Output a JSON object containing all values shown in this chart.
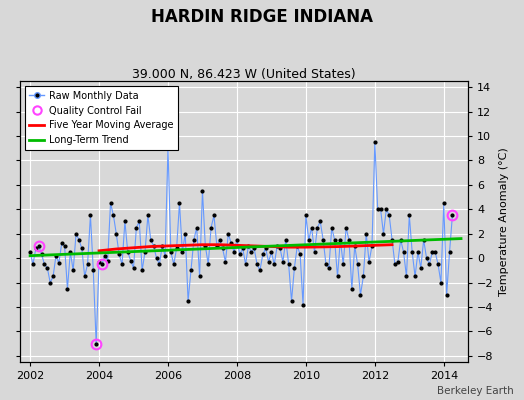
{
  "title": "HARDIN RIDGE INDIANA",
  "subtitle": "39.000 N, 86.423 W (United States)",
  "ylabel": "Temperature Anomaly (°C)",
  "watermark": "Berkeley Earth",
  "xlim": [
    2001.7,
    2014.7
  ],
  "ylim": [
    -8.5,
    14.5
  ],
  "yticks": [
    -8,
    -6,
    -4,
    -2,
    0,
    2,
    4,
    6,
    8,
    10,
    12,
    14
  ],
  "xticks": [
    2002,
    2004,
    2006,
    2008,
    2010,
    2012,
    2014
  ],
  "bg_color": "#d8d8d8",
  "plot_bg_color": "#d8d8d8",
  "grid_color": "#ffffff",
  "raw_line_color": "#6699ff",
  "raw_marker_color": "#000000",
  "qc_fail_color": "#ff44ff",
  "moving_avg_color": "#ff0000",
  "trend_color": "#00bb00",
  "title_fontsize": 12,
  "subtitle_fontsize": 9,
  "monthly_data": {
    "times": [
      2002.0,
      2002.083,
      2002.167,
      2002.25,
      2002.333,
      2002.417,
      2002.5,
      2002.583,
      2002.667,
      2002.75,
      2002.833,
      2002.917,
      2003.0,
      2003.083,
      2003.167,
      2003.25,
      2003.333,
      2003.417,
      2003.5,
      2003.583,
      2003.667,
      2003.75,
      2003.833,
      2003.917,
      2004.0,
      2004.083,
      2004.167,
      2004.25,
      2004.333,
      2004.417,
      2004.5,
      2004.583,
      2004.667,
      2004.75,
      2004.833,
      2004.917,
      2005.0,
      2005.083,
      2005.167,
      2005.25,
      2005.333,
      2005.417,
      2005.5,
      2005.583,
      2005.667,
      2005.75,
      2005.833,
      2005.917,
      2006.0,
      2006.083,
      2006.167,
      2006.25,
      2006.333,
      2006.417,
      2006.5,
      2006.583,
      2006.667,
      2006.75,
      2006.833,
      2006.917,
      2007.0,
      2007.083,
      2007.167,
      2007.25,
      2007.333,
      2007.417,
      2007.5,
      2007.583,
      2007.667,
      2007.75,
      2007.833,
      2007.917,
      2008.0,
      2008.083,
      2008.167,
      2008.25,
      2008.333,
      2008.417,
      2008.5,
      2008.583,
      2008.667,
      2008.75,
      2008.833,
      2008.917,
      2009.0,
      2009.083,
      2009.167,
      2009.25,
      2009.333,
      2009.417,
      2009.5,
      2009.583,
      2009.667,
      2009.75,
      2009.833,
      2009.917,
      2010.0,
      2010.083,
      2010.167,
      2010.25,
      2010.333,
      2010.417,
      2010.5,
      2010.583,
      2010.667,
      2010.75,
      2010.833,
      2010.917,
      2011.0,
      2011.083,
      2011.167,
      2011.25,
      2011.333,
      2011.417,
      2011.5,
      2011.583,
      2011.667,
      2011.75,
      2011.833,
      2011.917,
      2012.0,
      2012.083,
      2012.167,
      2012.25,
      2012.333,
      2012.417,
      2012.5,
      2012.583,
      2012.667,
      2012.75,
      2012.833,
      2012.917,
      2013.0,
      2013.083,
      2013.167,
      2013.25,
      2013.333,
      2013.417,
      2013.5,
      2013.583,
      2013.667,
      2013.75,
      2013.833,
      2013.917,
      2014.0,
      2014.083,
      2014.167,
      2014.25
    ],
    "values": [
      0.5,
      -0.5,
      0.8,
      1.0,
      0.3,
      -0.5,
      -0.8,
      -2.0,
      -1.5,
      0.2,
      -0.4,
      1.2,
      1.0,
      -2.5,
      0.5,
      -1.0,
      2.0,
      1.5,
      0.8,
      -1.5,
      -0.5,
      3.5,
      -1.0,
      -7.0,
      -0.3,
      -0.5,
      0.2,
      -0.2,
      4.5,
      3.5,
      2.0,
      0.3,
      -0.5,
      3.0,
      0.5,
      -0.2,
      -0.8,
      2.5,
      3.0,
      -1.0,
      0.5,
      3.5,
      1.5,
      1.0,
      0.0,
      -0.5,
      1.0,
      0.2,
      9.0,
      0.5,
      -0.5,
      0.8,
      4.5,
      0.5,
      2.0,
      -3.5,
      -1.0,
      1.5,
      2.5,
      -1.5,
      5.5,
      1.0,
      -0.5,
      2.5,
      3.5,
      1.0,
      1.5,
      0.8,
      -0.3,
      2.0,
      1.2,
      0.5,
      1.5,
      0.3,
      0.8,
      -0.5,
      1.0,
      0.5,
      0.8,
      -0.5,
      -1.0,
      0.3,
      0.8,
      -0.3,
      0.5,
      -0.5,
      1.0,
      0.8,
      -0.3,
      1.5,
      -0.5,
      -3.5,
      -0.8,
      1.0,
      0.3,
      -3.8,
      3.5,
      1.5,
      2.5,
      0.5,
      2.5,
      3.0,
      1.5,
      -0.5,
      -0.8,
      2.5,
      1.5,
      -1.5,
      1.5,
      -0.5,
      2.5,
      1.5,
      -2.5,
      1.0,
      -0.5,
      -3.0,
      -1.5,
      2.0,
      -0.3,
      1.0,
      9.5,
      4.0,
      4.0,
      2.0,
      4.0,
      3.5,
      1.5,
      -0.5,
      -0.3,
      1.5,
      0.5,
      -1.5,
      3.5,
      0.5,
      -1.5,
      0.5,
      -0.8,
      1.5,
      0.0,
      -0.5,
      0.5,
      0.5,
      -0.5,
      -2.0,
      4.5,
      -3.0,
      0.5,
      3.5
    ]
  },
  "qc_fail_points": {
    "times": [
      2002.25,
      2003.917,
      2004.083,
      2014.25
    ],
    "values": [
      1.0,
      -7.0,
      -0.5,
      3.5
    ]
  },
  "moving_avg": {
    "times": [
      2004.0,
      2004.5,
      2005.0,
      2005.5,
      2006.0,
      2006.5,
      2007.0,
      2007.5,
      2008.0,
      2008.5,
      2009.0,
      2009.5,
      2010.0,
      2010.5,
      2011.0,
      2011.5,
      2012.0,
      2012.5
    ],
    "values": [
      0.6,
      0.75,
      0.85,
      0.95,
      1.0,
      1.05,
      1.1,
      1.1,
      1.05,
      1.0,
      0.95,
      0.9,
      0.9,
      0.92,
      0.95,
      1.0,
      1.05,
      1.1
    ]
  },
  "trend": {
    "times": [
      2002.0,
      2014.5
    ],
    "values": [
      0.2,
      1.6
    ]
  }
}
